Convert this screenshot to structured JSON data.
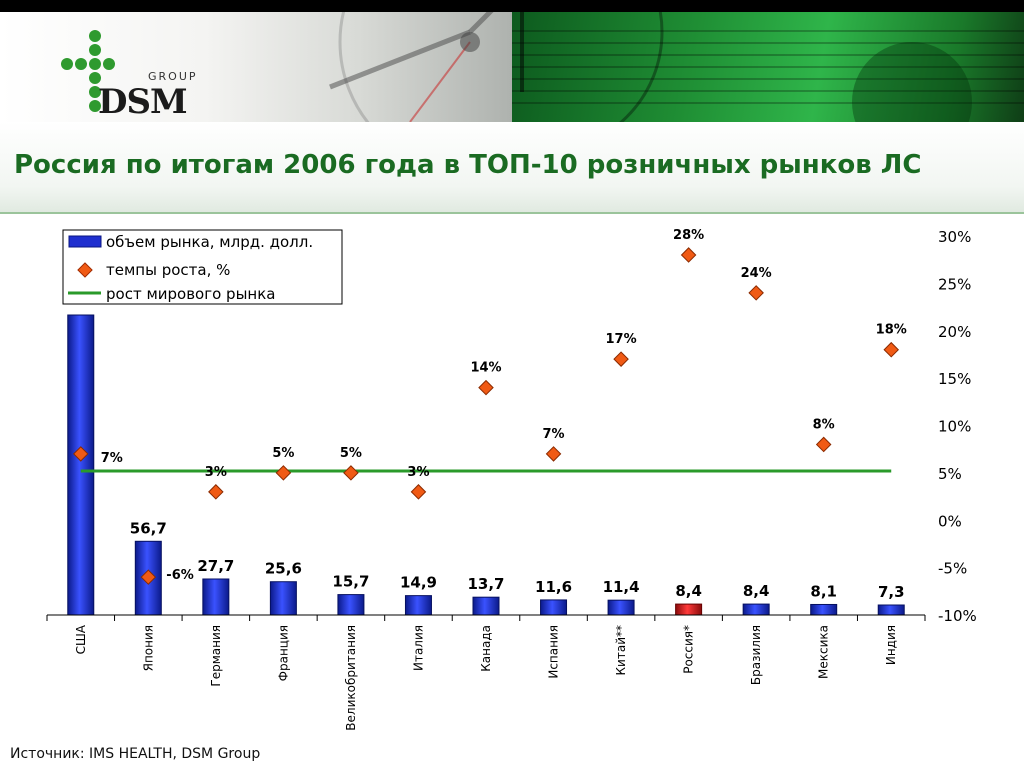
{
  "header": {
    "logo_main": "DSM",
    "logo_sub": "GROUP"
  },
  "page": {
    "title": "Россия по итогам 2006 года в ТОП-10 розничных рынков ЛС",
    "source": "Источник: IMS HEALTH, DSM Group"
  },
  "colors": {
    "bar": "#1f2fcf",
    "bar_highlight": "#d42020",
    "marker": "#f05a14",
    "world_line": "#2a9a2a",
    "title": "#1a6b22"
  },
  "chart_data": {
    "type": "bar",
    "categories": [
      "США",
      "Япония",
      "Германия",
      "Франция",
      "Великобритания",
      "Италия",
      "Канада",
      "Испания",
      "Китай**",
      "Россия*",
      "Бразилия",
      "Мексика",
      "Индия"
    ],
    "series": [
      {
        "name": "объем рынка, млрд. долл.",
        "type": "bar",
        "values": [
          null,
          56.7,
          27.7,
          25.6,
          15.7,
          14.9,
          13.7,
          11.6,
          11.4,
          8.4,
          8.4,
          8.1,
          7.3
        ],
        "labels": [
          "",
          "56,7",
          "27,7",
          "25,6",
          "15,7",
          "14,9",
          "13,7",
          "11,6",
          "11,4",
          "8,4",
          "8,4",
          "8,1",
          "7,3"
        ],
        "highlight_index": 9
      },
      {
        "name": "темпы роста, %",
        "type": "scatter",
        "axis": "right",
        "values": [
          7,
          -6,
          3,
          5,
          5,
          3,
          14,
          7,
          17,
          28,
          24,
          8,
          18
        ],
        "labels": [
          "7%",
          "-6%",
          "3%",
          "5%",
          "5%",
          "3%",
          "14%",
          "7%",
          "17%",
          "28%",
          "24%",
          "8%",
          "18%"
        ]
      },
      {
        "name": "рост мирового рынка",
        "type": "line",
        "axis": "right",
        "value": 5.2
      }
    ],
    "right_axis": {
      "ticks": [
        30,
        25,
        20,
        15,
        10,
        5,
        0,
        -5,
        -10
      ],
      "tick_labels": [
        "30%",
        "25%",
        "20%",
        "15%",
        "10%",
        "5%",
        "0%",
        "-5%",
        "-10%"
      ],
      "ylim": [
        -10,
        30
      ]
    },
    "left_axis_ylim": [
      0,
      210
    ],
    "grid": false,
    "legend_position": "top-left"
  }
}
